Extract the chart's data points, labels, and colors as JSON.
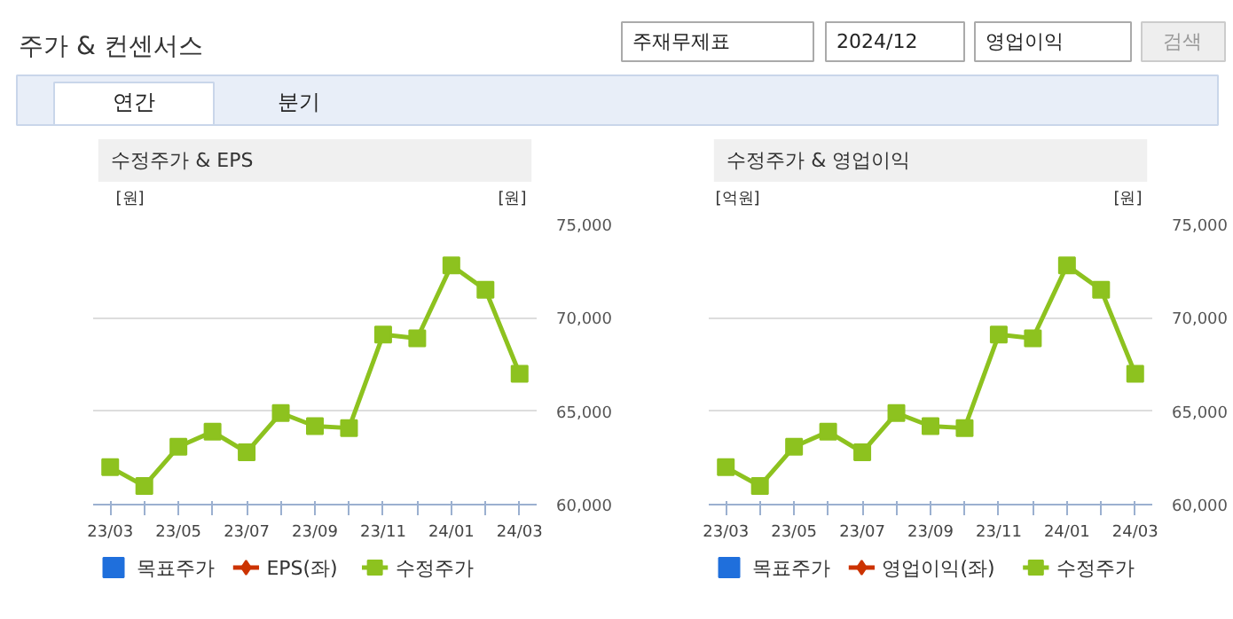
{
  "chart_data": [
    {
      "type": "line",
      "title": "수정주가 & EPS",
      "ylabel": "[원]",
      "y2label": "[원]",
      "annotations": [
        "주가 & 컨센서스",
        "주재무제표",
        "2024/12",
        "영업이익",
        "검색",
        "연간",
        "분기"
      ],
      "categories": [
        "23/03",
        null,
        "23/05",
        null,
        "23/07",
        null,
        "23/09",
        null,
        "23/11",
        null,
        "24/01",
        null,
        "24/03"
      ],
      "series": [
        {
          "name": "목표주가",
          "type": "bar",
          "color": "#1f6fdc",
          "values": [
            null,
            null,
            null,
            null,
            null,
            null,
            null,
            null,
            null,
            null,
            null,
            null,
            null
          ]
        },
        {
          "name": "EPS(좌)",
          "type": "line",
          "marker": "diamond",
          "color": "#cc3300",
          "values": [
            null,
            null,
            null,
            null,
            null,
            null,
            null,
            null,
            null,
            null,
            null,
            null,
            null
          ]
        },
        {
          "name": "수정주가",
          "marker": "square",
          "color": "#8dc21f",
          "axis": "y2",
          "values": [
            62000,
            61000,
            63100,
            63900,
            62800,
            64900,
            64200,
            64100,
            69100,
            68900,
            72800,
            71500,
            67000
          ]
        }
      ],
      "y2lim": [
        60000,
        75000
      ],
      "y2ticks": [
        {
          "value": 60000,
          "label": "60,000"
        },
        {
          "value": 65000,
          "label": "65,000"
        },
        {
          "value": 70000,
          "label": "70,000"
        },
        {
          "value": 75000,
          "label": "75,000"
        }
      ],
      "grid": "y",
      "legend": "bottom"
    },
    {
      "type": "line",
      "title": "수정주가 & 영업이익",
      "ylabel": "[억원]",
      "y2label": "[원]",
      "categories": [
        "23/03",
        null,
        "23/05",
        null,
        "23/07",
        null,
        "23/09",
        null,
        "23/11",
        null,
        "24/01",
        null,
        "24/03"
      ],
      "series": [
        {
          "name": "목표주가",
          "type": "bar",
          "color": "#1f6fdc",
          "values": [
            null,
            null,
            null,
            null,
            null,
            null,
            null,
            null,
            null,
            null,
            null,
            null,
            null
          ]
        },
        {
          "name": "영업이익(좌)",
          "type": "line",
          "marker": "diamond",
          "color": "#cc3300",
          "values": [
            null,
            null,
            null,
            null,
            null,
            null,
            null,
            null,
            null,
            null,
            null,
            null,
            null
          ]
        },
        {
          "name": "수정주가",
          "marker": "square",
          "color": "#8dc21f",
          "axis": "y2",
          "values": [
            62000,
            61000,
            63100,
            63900,
            62800,
            64900,
            64200,
            64100,
            69100,
            68900,
            72800,
            71500,
            67000
          ]
        }
      ],
      "y2lim": [
        60000,
        75000
      ],
      "y2ticks": [
        {
          "value": 60000,
          "label": "60,000"
        },
        {
          "value": 65000,
          "label": "65,000"
        },
        {
          "value": 70000,
          "label": "70,000"
        },
        {
          "value": 75000,
          "label": "75,000"
        }
      ],
      "grid": "y",
      "legend": "bottom"
    }
  ]
}
